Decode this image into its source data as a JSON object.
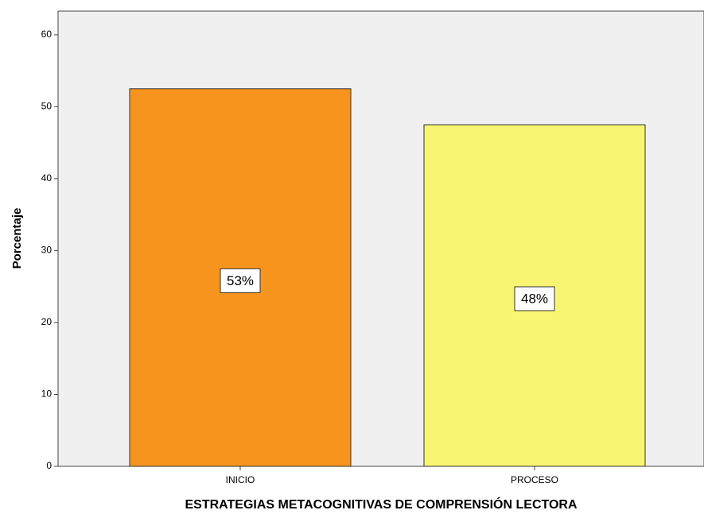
{
  "chart_data": {
    "type": "bar",
    "xlabel": "ESTRATEGIAS METACOGNITIVAS DE COMPRENSIÓN LECTORA",
    "ylabel": "Porcentaje",
    "categories": [
      "INICIO",
      "PROCESO"
    ],
    "values": [
      52.5,
      47.5
    ],
    "value_labels": [
      "53%",
      "48%"
    ],
    "colors": [
      "#f7941d",
      "#f8f573"
    ],
    "ylim": [
      0,
      63.3
    ],
    "yticks": [
      0,
      10,
      20,
      30,
      40,
      50,
      60
    ]
  }
}
